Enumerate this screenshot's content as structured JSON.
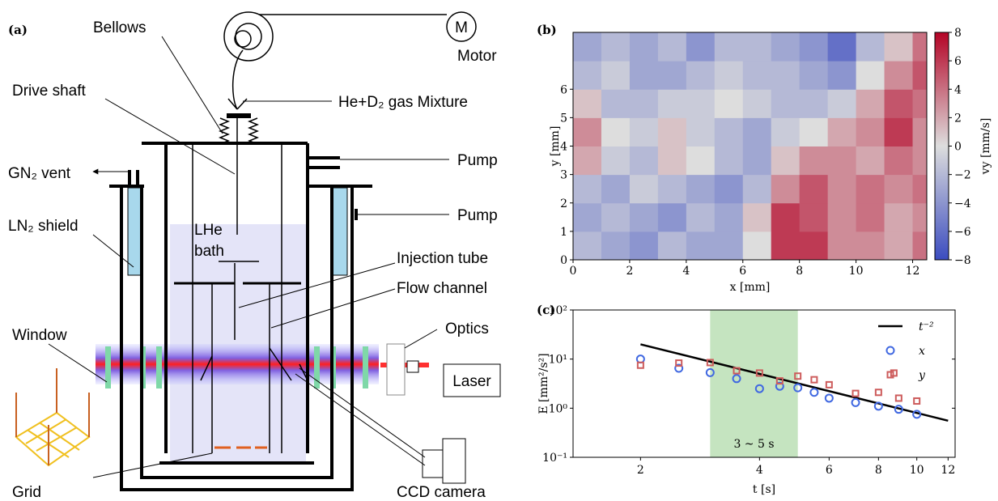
{
  "diagram": {
    "panel": "(a)",
    "labels": {
      "bellows": "Bellows",
      "motor_symbol": "M",
      "motor": "Motor",
      "drive_shaft": "Drive shaft",
      "gas": "He+D₂ gas Mixture",
      "pump_upper": "Pump",
      "pump_lower": "Pump",
      "vent": "GN₂ vent",
      "shield": "LN₂ shield",
      "bath_1": "LHe",
      "bath_2": "bath",
      "injection": "Injection tube",
      "channel": "Flow channel",
      "optics": "Optics",
      "window": "Window",
      "laser": "Laser",
      "grid": "Grid",
      "camera": "CCD camera"
    }
  },
  "chart_data": [
    {
      "type": "heatmap",
      "panel": "(b)",
      "xlabel": "x [mm]",
      "ylabel": "y [mm]",
      "colorbar_label": "vy [mm/s]",
      "x": [
        0.5,
        1.5,
        2.5,
        3.5,
        4.5,
        5.5,
        6.5,
        7.5,
        8.5,
        9.5,
        10.5,
        11.5,
        12.5
      ],
      "y": [
        0.5,
        1.5,
        2.5,
        3.5,
        4.5,
        5.5,
        6.5,
        7.5
      ],
      "values": [
        [
          -2,
          -3,
          -4,
          -2,
          -3,
          -3,
          0,
          6,
          6,
          3,
          3,
          2,
          4
        ],
        [
          -3,
          -2,
          -3,
          -4,
          -2,
          -3,
          1,
          6,
          5,
          3,
          4,
          2,
          3
        ],
        [
          -2,
          -3,
          -1,
          -2,
          -3,
          -4,
          -2,
          3,
          5,
          3,
          4,
          3,
          4
        ],
        [
          2,
          -1,
          -2,
          1,
          0,
          -2,
          -3,
          1,
          3,
          3,
          2,
          4,
          3
        ],
        [
          3,
          0,
          -1,
          1,
          -1,
          -2,
          -3,
          -1,
          0,
          2,
          3,
          6,
          3
        ],
        [
          1,
          -2,
          -2,
          -1,
          -1,
          0,
          -1,
          -2,
          -2,
          -1,
          2,
          5,
          4
        ],
        [
          -2,
          -1,
          -3,
          -3,
          -2,
          -1,
          -2,
          -2,
          -3,
          -4,
          0,
          3,
          5
        ],
        [
          -3,
          -2,
          -3,
          -2,
          -4,
          -2,
          -2,
          -3,
          -4,
          -6,
          -2,
          1,
          4
        ]
      ],
      "xlim": [
        0,
        12.5
      ],
      "ylim": [
        0,
        8
      ],
      "xticks": [
        0,
        2,
        4,
        6,
        8,
        10,
        12
      ],
      "yticks": [
        0,
        1,
        2,
        3,
        4,
        5,
        6
      ],
      "zlim": [
        -8,
        8
      ],
      "colormap": [
        "#3b4cc0",
        "#dddddd",
        "#b40426"
      ],
      "zticks": [
        {
          "value": -8,
          "label": "−8"
        },
        {
          "value": -6,
          "label": "−6"
        },
        {
          "value": -4,
          "label": "−4"
        },
        {
          "value": -2,
          "label": "−2"
        },
        0,
        2,
        4,
        6,
        8
      ]
    },
    {
      "type": "scatter",
      "panel": "(c)",
      "xlabel": "t [s]",
      "ylabel": "E [mm²/s²]",
      "log_x": true,
      "log_y": true,
      "xlim": [
        1.35,
        12.5
      ],
      "ylim": [
        0.1,
        100
      ],
      "xticks": [
        2,
        4,
        6,
        8,
        10,
        12
      ],
      "yticks": [
        {
          "value": 0.1,
          "label": "10⁻¹"
        },
        {
          "value": 1,
          "label": "10⁰"
        },
        {
          "value": 10,
          "label": "10¹"
        },
        {
          "value": 100,
          "label": "10²"
        }
      ],
      "highlight": {
        "x": [
          3,
          5
        ],
        "color": "#c5e4c0",
        "label": "3 ~ 5 s"
      },
      "legend": "upper right",
      "series": [
        {
          "name": "t⁻²",
          "marker": "line",
          "color": "#000000",
          "x": [
            2,
            12
          ],
          "values": [
            20,
            0.556
          ]
        },
        {
          "name": "x",
          "marker": "circle",
          "color": "#4169e1",
          "x": [
            2,
            2.5,
            3,
            3.5,
            4,
            4.5,
            5,
            5.5,
            6,
            7,
            8,
            9,
            10
          ],
          "values": [
            10,
            6.5,
            5.3,
            4,
            2.5,
            2.8,
            2.6,
            2.1,
            1.6,
            1.3,
            1.1,
            0.95,
            0.75
          ]
        },
        {
          "name": "y",
          "marker": "square",
          "color": "#cd5c5c",
          "x": [
            2,
            2.5,
            3,
            3.5,
            4,
            4.5,
            5,
            5.5,
            6,
            7,
            8,
            8.75,
            9,
            10
          ],
          "values": [
            7.5,
            8.3,
            8.5,
            5.8,
            5.2,
            3.6,
            4.5,
            3.8,
            3,
            2,
            2.1,
            5.2,
            1.6,
            1.4
          ]
        }
      ]
    }
  ]
}
